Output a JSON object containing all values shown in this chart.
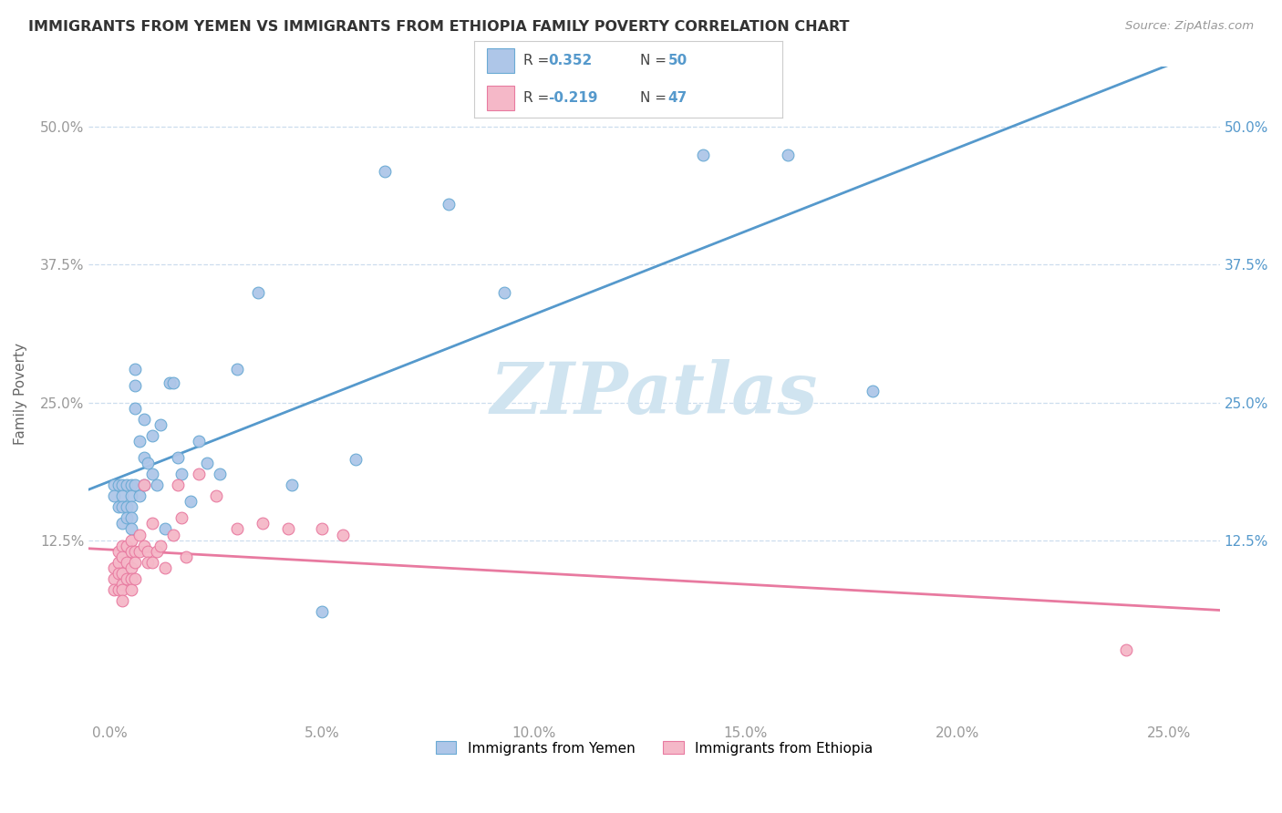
{
  "title": "IMMIGRANTS FROM YEMEN VS IMMIGRANTS FROM ETHIOPIA FAMILY POVERTY CORRELATION CHART",
  "source": "Source: ZipAtlas.com",
  "ylabel": "Family Poverty",
  "x_tick_labels": [
    "0.0%",
    "5.0%",
    "10.0%",
    "15.0%",
    "20.0%",
    "25.0%"
  ],
  "x_tick_vals": [
    0.0,
    0.05,
    0.1,
    0.15,
    0.2,
    0.25
  ],
  "y_tick_labels": [
    "12.5%",
    "25.0%",
    "37.5%",
    "50.0%"
  ],
  "y_tick_vals": [
    0.125,
    0.25,
    0.375,
    0.5
  ],
  "xlim": [
    -0.005,
    0.262
  ],
  "ylim": [
    -0.04,
    0.555
  ],
  "legend_blue_label": "Immigrants from Yemen",
  "legend_pink_label": "Immigrants from Ethiopia",
  "legend_r_blue": "R =  0.352",
  "legend_n_blue": "N = 50",
  "legend_r_pink": "R = -0.219",
  "legend_n_pink": "N = 47",
  "blue_color": "#aec6e8",
  "pink_color": "#f5b8c8",
  "blue_edge_color": "#6aaad4",
  "pink_edge_color": "#e87aa0",
  "blue_line_color": "#5599cc",
  "pink_line_color": "#e87aa0",
  "watermark": "ZIPatlas",
  "watermark_color": "#d0e4f0",
  "yemen_x": [
    0.001,
    0.001,
    0.002,
    0.002,
    0.003,
    0.003,
    0.003,
    0.003,
    0.004,
    0.004,
    0.004,
    0.005,
    0.005,
    0.005,
    0.005,
    0.005,
    0.006,
    0.006,
    0.006,
    0.006,
    0.007,
    0.007,
    0.008,
    0.008,
    0.008,
    0.009,
    0.01,
    0.01,
    0.011,
    0.012,
    0.013,
    0.014,
    0.015,
    0.016,
    0.017,
    0.019,
    0.021,
    0.023,
    0.026,
    0.03,
    0.035,
    0.043,
    0.05,
    0.058,
    0.065,
    0.08,
    0.093,
    0.14,
    0.16,
    0.18
  ],
  "yemen_y": [
    0.175,
    0.165,
    0.175,
    0.155,
    0.175,
    0.165,
    0.155,
    0.14,
    0.175,
    0.155,
    0.145,
    0.175,
    0.165,
    0.155,
    0.145,
    0.135,
    0.28,
    0.265,
    0.245,
    0.175,
    0.215,
    0.165,
    0.235,
    0.2,
    0.175,
    0.195,
    0.22,
    0.185,
    0.175,
    0.23,
    0.135,
    0.268,
    0.268,
    0.2,
    0.185,
    0.16,
    0.215,
    0.195,
    0.185,
    0.28,
    0.35,
    0.175,
    0.06,
    0.198,
    0.46,
    0.43,
    0.35,
    0.475,
    0.475,
    0.26
  ],
  "ethiopia_x": [
    0.001,
    0.001,
    0.001,
    0.002,
    0.002,
    0.002,
    0.002,
    0.003,
    0.003,
    0.003,
    0.003,
    0.003,
    0.003,
    0.004,
    0.004,
    0.004,
    0.005,
    0.005,
    0.005,
    0.005,
    0.005,
    0.006,
    0.006,
    0.006,
    0.007,
    0.007,
    0.008,
    0.008,
    0.009,
    0.009,
    0.01,
    0.01,
    0.011,
    0.012,
    0.013,
    0.015,
    0.016,
    0.017,
    0.018,
    0.021,
    0.025,
    0.03,
    0.036,
    0.042,
    0.05,
    0.055,
    0.24
  ],
  "ethiopia_y": [
    0.1,
    0.09,
    0.08,
    0.115,
    0.105,
    0.095,
    0.08,
    0.12,
    0.11,
    0.095,
    0.085,
    0.08,
    0.07,
    0.12,
    0.105,
    0.09,
    0.125,
    0.115,
    0.1,
    0.09,
    0.08,
    0.115,
    0.105,
    0.09,
    0.13,
    0.115,
    0.175,
    0.12,
    0.115,
    0.105,
    0.14,
    0.105,
    0.115,
    0.12,
    0.1,
    0.13,
    0.175,
    0.145,
    0.11,
    0.185,
    0.165,
    0.135,
    0.14,
    0.135,
    0.135,
    0.13,
    0.025
  ]
}
